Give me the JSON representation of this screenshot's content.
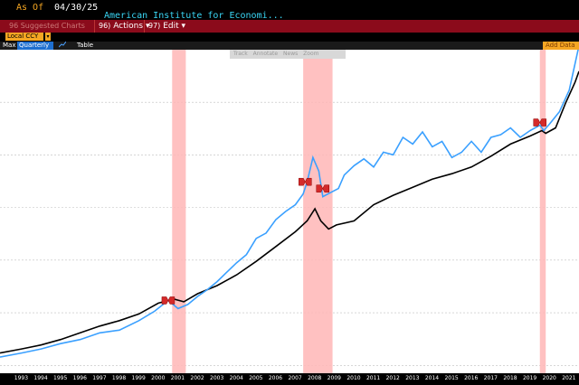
{
  "header": {
    "asof_label": "As Of",
    "asof_date": "04/30/25",
    "source_title": "American Institute for Economi..."
  },
  "menubar": {
    "suggested": "96 Suggested Charts",
    "actions": {
      "num": "96)",
      "label": "Actions",
      "arrow": "▾"
    },
    "edit": {
      "num": "97)",
      "label": "Edit",
      "arrow": "▾"
    }
  },
  "currency": {
    "label": "Local CCY",
    "arrow": "▾"
  },
  "toolbar": {
    "range": "Max",
    "frequency": "Quarterly ▼",
    "chart_icon": "line-chart-icon",
    "table": "Table",
    "add_data": "Add Data"
  },
  "chart_tools": {
    "track": "Track",
    "annotate": "Annotate",
    "news": "News",
    "zoom": "Zoom"
  },
  "colors": {
    "series_primary": "#000000",
    "series_secondary": "#3aa0ff",
    "recession_band": "#ffb6b6",
    "marker": "#d42a2a",
    "gridline": "#bfbfbf"
  },
  "chart_data": {
    "type": "line",
    "x_ticks": [
      "1993",
      "1994",
      "1995",
      "1996",
      "1997",
      "1998",
      "1999",
      "2000",
      "2001",
      "2002",
      "2003",
      "2004",
      "2005",
      "2006",
      "2007",
      "2008",
      "2009",
      "2010",
      "2011",
      "2012",
      "2013",
      "2014",
      "2015",
      "2016",
      "2017",
      "2018",
      "2019",
      "2020",
      "2021"
    ],
    "grid": true,
    "legend": "none",
    "recession_bands": [
      [
        2001.2,
        2001.9
      ],
      [
        2007.9,
        2009.4
      ],
      [
        2020.0,
        2020.3
      ]
    ],
    "series": [
      {
        "color": "#000000",
        "points": [
          [
            1992.4,
            5
          ],
          [
            1993.5,
            8
          ],
          [
            1994.5,
            11
          ],
          [
            1995.5,
            15
          ],
          [
            1996.5,
            20
          ],
          [
            1997.5,
            25
          ],
          [
            1998.5,
            29
          ],
          [
            1999.5,
            34
          ],
          [
            2000.5,
            42
          ],
          [
            2001.3,
            45
          ],
          [
            2001.8,
            43
          ],
          [
            2002.5,
            49
          ],
          [
            2003.5,
            55
          ],
          [
            2004.5,
            63
          ],
          [
            2005.5,
            73
          ],
          [
            2006.5,
            84
          ],
          [
            2007.5,
            95
          ],
          [
            2008.1,
            103
          ],
          [
            2008.5,
            112
          ],
          [
            2008.8,
            103
          ],
          [
            2009.2,
            97
          ],
          [
            2009.6,
            100
          ],
          [
            2010.5,
            103
          ],
          [
            2011.5,
            115
          ],
          [
            2012.5,
            122
          ],
          [
            2013.5,
            128
          ],
          [
            2014.5,
            134
          ],
          [
            2015.5,
            138
          ],
          [
            2016.5,
            143
          ],
          [
            2017.5,
            151
          ],
          [
            2018.5,
            160
          ],
          [
            2019.5,
            166
          ],
          [
            2020.1,
            170
          ],
          [
            2020.3,
            168
          ],
          [
            2020.8,
            172
          ],
          [
            2021.3,
            190
          ],
          [
            2021.8,
            206
          ],
          [
            2022.0,
            214
          ]
        ]
      },
      {
        "color": "#3aa0ff",
        "points": [
          [
            1992.4,
            2
          ],
          [
            1993.5,
            5
          ],
          [
            1994.5,
            8
          ],
          [
            1995.5,
            12
          ],
          [
            1996.5,
            15
          ],
          [
            1997.5,
            20
          ],
          [
            1998.5,
            22
          ],
          [
            1999.5,
            29
          ],
          [
            2000.3,
            36
          ],
          [
            2001.0,
            44
          ],
          [
            2001.5,
            38
          ],
          [
            2002.0,
            41
          ],
          [
            2002.5,
            47
          ],
          [
            2003.0,
            52
          ],
          [
            2003.5,
            58
          ],
          [
            2004.0,
            65
          ],
          [
            2004.5,
            72
          ],
          [
            2005.0,
            78
          ],
          [
            2005.5,
            90
          ],
          [
            2006.0,
            94
          ],
          [
            2006.5,
            104
          ],
          [
            2007.0,
            110
          ],
          [
            2007.5,
            115
          ],
          [
            2007.9,
            123
          ],
          [
            2008.1,
            132
          ],
          [
            2008.4,
            150
          ],
          [
            2008.7,
            140
          ],
          [
            2008.9,
            121
          ],
          [
            2009.3,
            124
          ],
          [
            2009.7,
            127
          ],
          [
            2010.0,
            137
          ],
          [
            2010.5,
            144
          ],
          [
            2011.0,
            149
          ],
          [
            2011.5,
            143
          ],
          [
            2012.0,
            154
          ],
          [
            2012.5,
            152
          ],
          [
            2013.0,
            165
          ],
          [
            2013.5,
            160
          ],
          [
            2014.0,
            169
          ],
          [
            2014.5,
            158
          ],
          [
            2015.0,
            162
          ],
          [
            2015.5,
            150
          ],
          [
            2016.0,
            154
          ],
          [
            2016.5,
            162
          ],
          [
            2017.0,
            154
          ],
          [
            2017.5,
            165
          ],
          [
            2018.0,
            167
          ],
          [
            2018.5,
            172
          ],
          [
            2019.0,
            165
          ],
          [
            2019.5,
            170
          ],
          [
            2020.0,
            174
          ],
          [
            2020.2,
            170
          ],
          [
            2020.5,
            175
          ],
          [
            2021.0,
            184
          ],
          [
            2021.5,
            200
          ],
          [
            2022.0,
            233
          ]
        ]
      }
    ],
    "markers": [
      [
        2001.0,
        44
      ],
      [
        2008.0,
        132
      ],
      [
        2008.9,
        127
      ],
      [
        2020.0,
        176
      ]
    ]
  }
}
